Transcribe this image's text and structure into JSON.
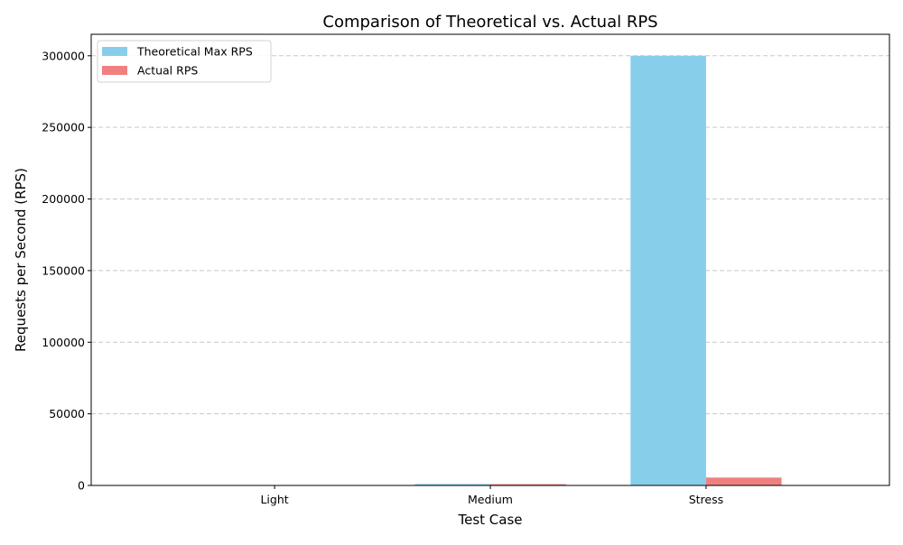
{
  "chart_data": {
    "type": "bar",
    "title": "Comparison of Theoretical vs. Actual RPS",
    "xlabel": "Test Case",
    "ylabel": "Requests per Second (RPS)",
    "categories": [
      "Light",
      "Medium",
      "Stress"
    ],
    "series": [
      {
        "name": "Theoretical Max RPS",
        "color": "#87ceeb",
        "values": [
          100,
          1000,
          300000
        ]
      },
      {
        "name": "Actual RPS",
        "color": "#f08080",
        "values": [
          80,
          900,
          5500
        ]
      }
    ],
    "ylim": [
      0,
      315000
    ],
    "yticks": [
      0,
      50000,
      100000,
      150000,
      200000,
      250000,
      300000
    ],
    "ytick_labels": [
      "0",
      "50000",
      "100000",
      "150000",
      "200000",
      "250000",
      "300000"
    ],
    "grid": "y-dashed",
    "legend_position": "top-left"
  }
}
